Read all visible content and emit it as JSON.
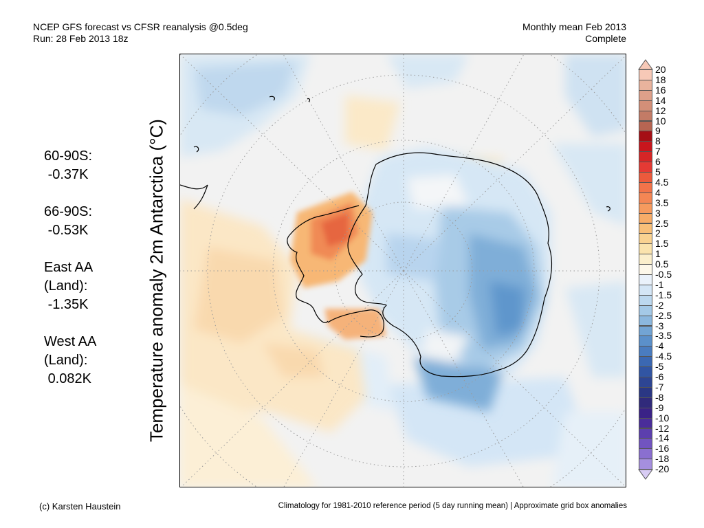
{
  "header": {
    "line1_left": "NCEP GFS forecast vs CFSR reanalysis @0.5deg",
    "line2_left": "Run: 28 Feb 2013 18z",
    "line1_right": "Monthly mean Feb 2013",
    "line2_right": "Complete"
  },
  "ylabel": "Temperature anomaly 2m Antarctica (°C)",
  "stats": [
    {
      "name": "60-90S:",
      "value": "-0.37K"
    },
    {
      "name": "66-90S:",
      "value": "-0.53K"
    },
    {
      "name": "East AA\n(Land):",
      "value": "-1.35K"
    },
    {
      "name": "West AA\n(Land):",
      "value": "0.082K"
    }
  ],
  "colorbar": {
    "labels": [
      "20",
      "18",
      "16",
      "14",
      "12",
      "10",
      "9",
      "8",
      "7",
      "6",
      "5",
      "4.5",
      "4",
      "3.5",
      "3",
      "2.5",
      "2",
      "1.5",
      "1",
      "0.5",
      "-0.5",
      "-1",
      "-1.5",
      "-2",
      "-2.5",
      "-3",
      "-3.5",
      "-4",
      "-4.5",
      "-5",
      "-6",
      "-7",
      "-8",
      "-9",
      "-10",
      "-12",
      "-14",
      "-16",
      "-18",
      "-20"
    ],
    "colors": [
      "#f7c9b7",
      "#e9b39d",
      "#dea08a",
      "#d38f78",
      "#c37b66",
      "#b76552",
      "#a50f15",
      "#c8161d",
      "#d62626",
      "#e53a34",
      "#ec5a3c",
      "#f2734a",
      "#f48654",
      "#f69a5e",
      "#f7ac68",
      "#f8bf79",
      "#f9d291",
      "#fae3ad",
      "#fbefcc",
      "#fdf8ea",
      "#eaf2fb",
      "#d4e6f6",
      "#bcd8ef",
      "#a4c9e7",
      "#8bb7de",
      "#72a4d4",
      "#5b90ca",
      "#4a7cbf",
      "#3b68b2",
      "#3155a3",
      "#2d4593",
      "#2a3784",
      "#302a7b",
      "#3a2287",
      "#4a2d9a",
      "#5c3fae",
      "#7154c0",
      "#8a6fd0",
      "#a58fde",
      "#c2b3ea"
    ],
    "tip_top_color": "#f7c9b7",
    "tip_bottom_color": "#d8ccf4"
  },
  "footer": {
    "left": "(c) Karsten Haustein",
    "right": "Climatology for 1981-2010 reference period (5 day running mean) | Approximate grid box anomalies"
  }
}
